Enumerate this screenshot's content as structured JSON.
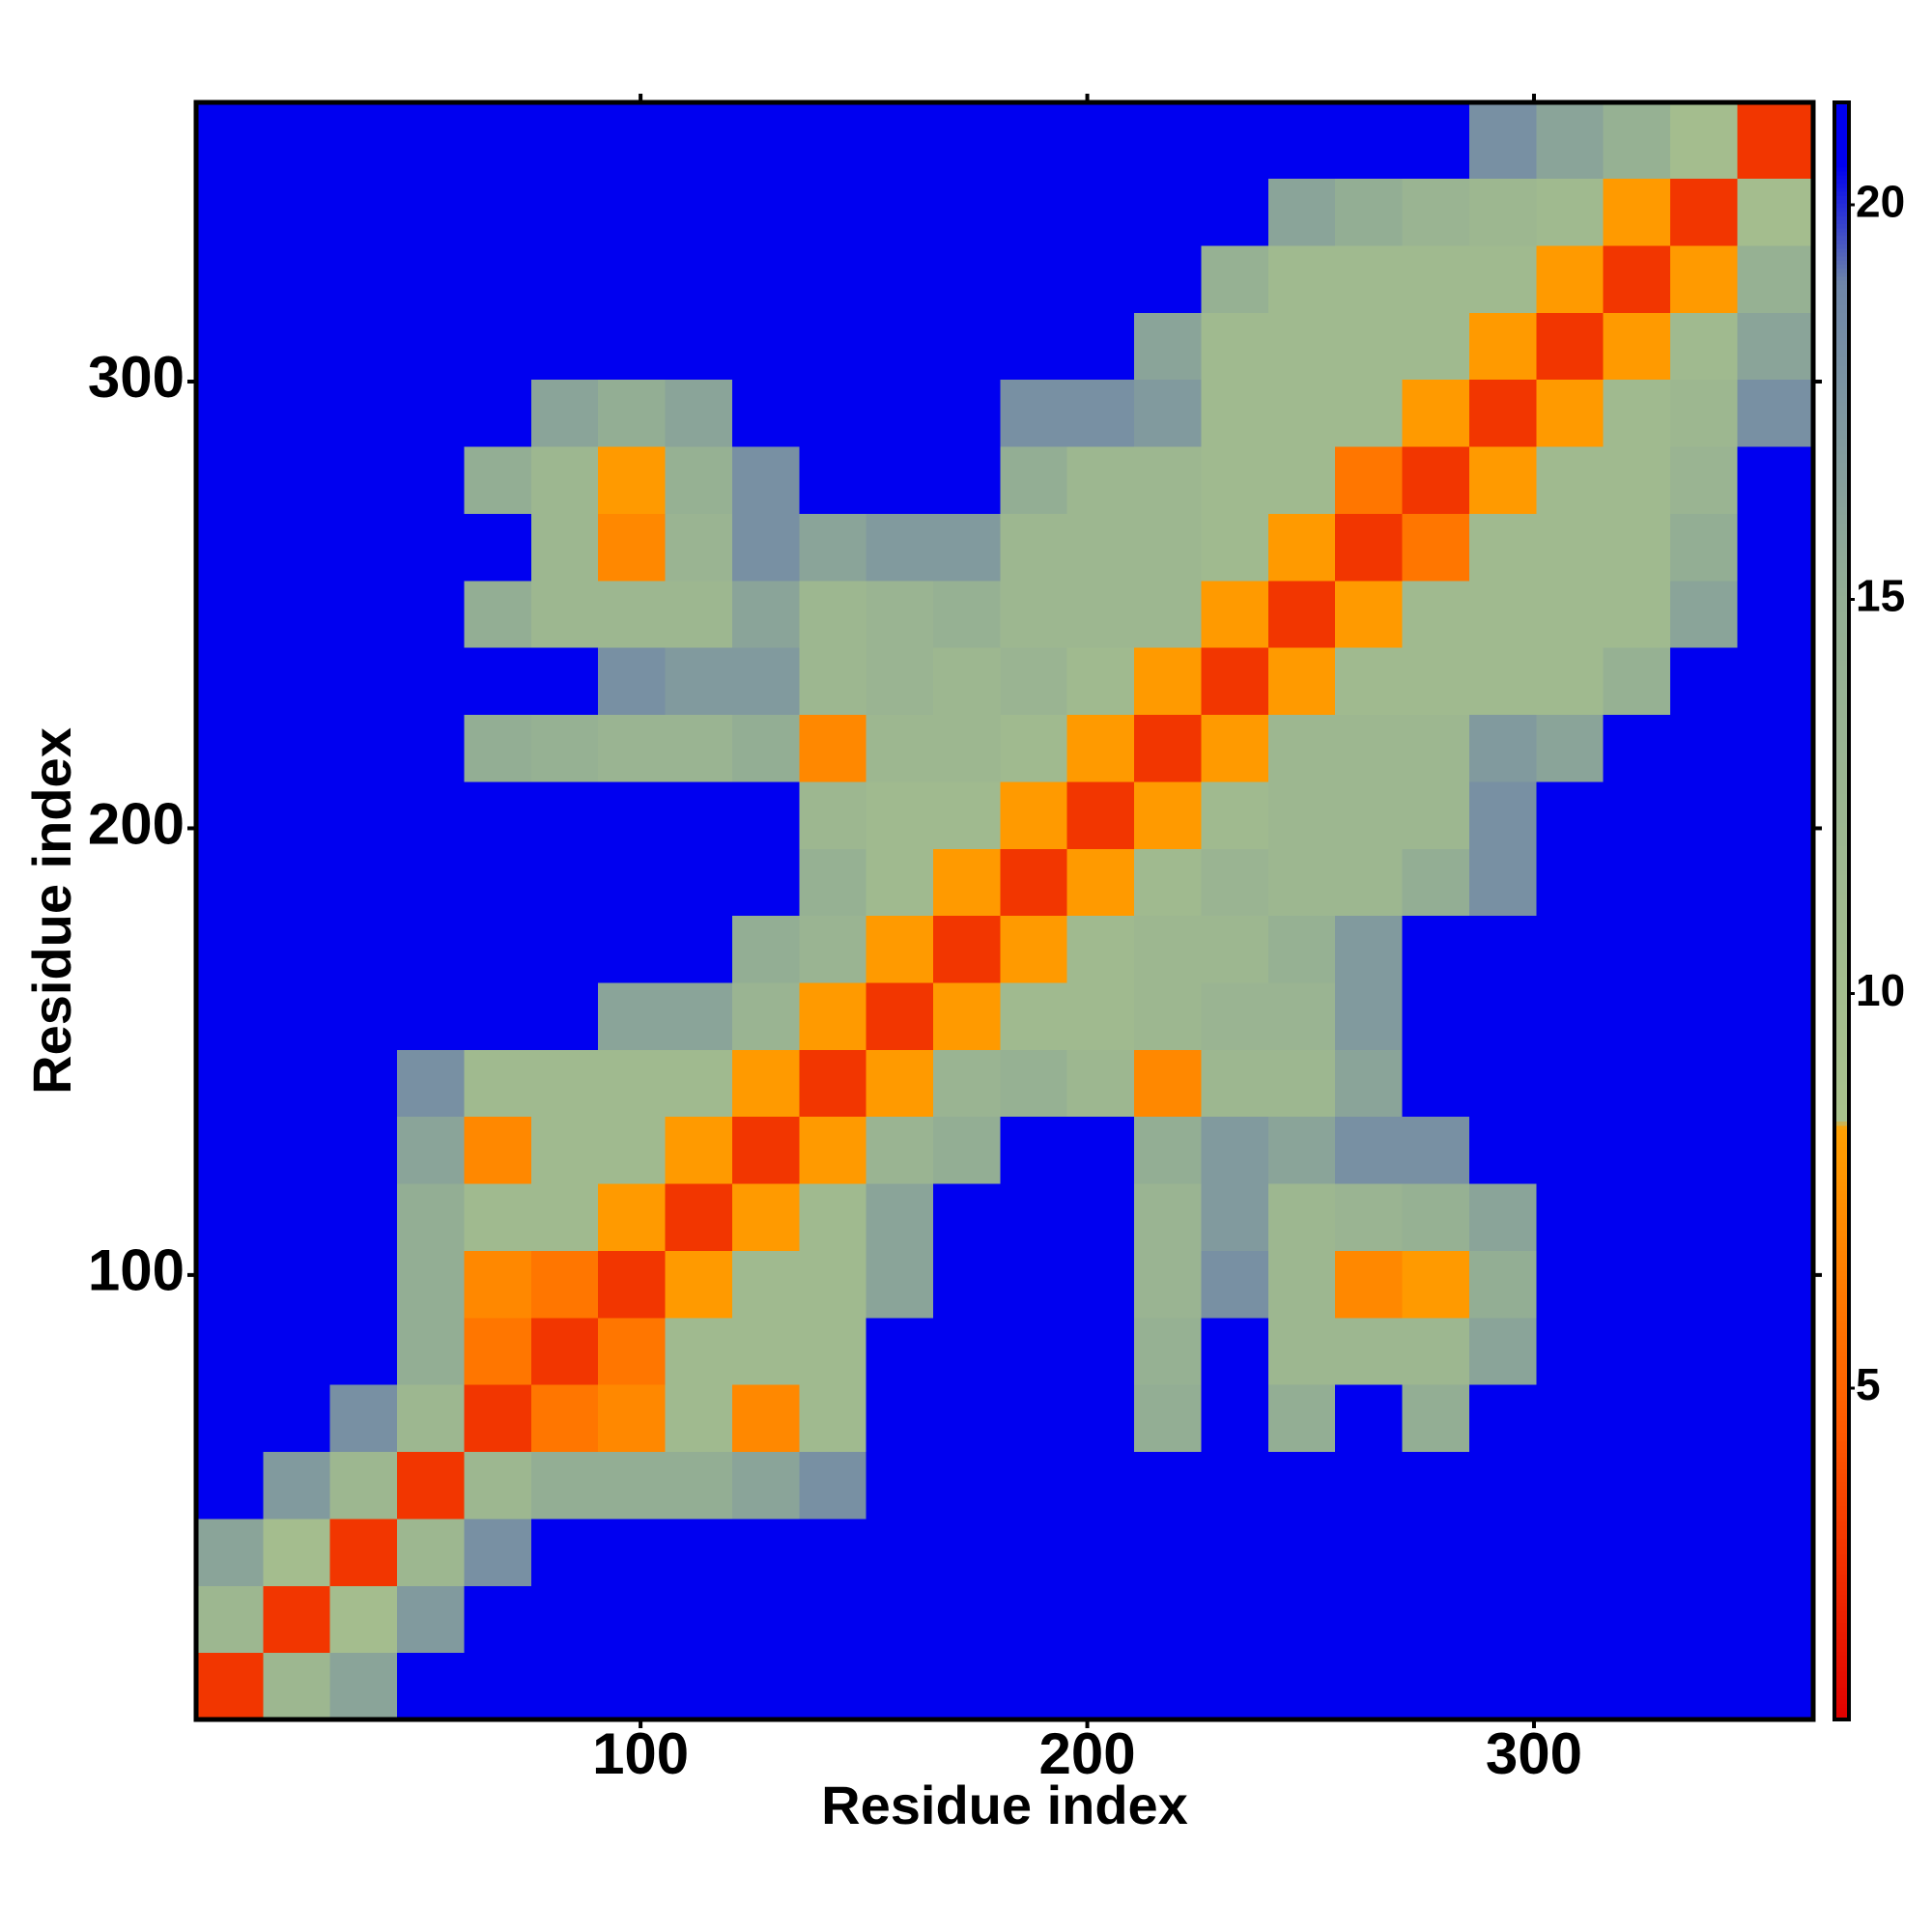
{
  "chart_data": {
    "type": "heatmap",
    "xlabel": "Residue index",
    "ylabel": "Residue index",
    "xlim": [
      0.5,
      362.5
    ],
    "ylim": [
      0.5,
      362.5
    ],
    "xticks": [
      100,
      200,
      300
    ],
    "yticks": [
      100,
      200,
      300
    ],
    "xbins": [
      0.5,
      15.5,
      30.5,
      45.5,
      60.5,
      75.5,
      90.5,
      105.5,
      120.5,
      135.5,
      150.5,
      165.5,
      180.5,
      195.5,
      210.5,
      225.5,
      240.5,
      255.5,
      270.5,
      285.5,
      300.5,
      315.5,
      330.5,
      345.5,
      362.5
    ],
    "ybins": [
      0.5,
      15.5,
      30.5,
      45.5,
      60.5,
      75.5,
      90.5,
      105.5,
      120.5,
      135.5,
      150.5,
      165.5,
      180.5,
      195.5,
      210.5,
      225.5,
      240.5,
      255.5,
      270.5,
      285.5,
      300.5,
      315.5,
      330.5,
      345.5,
      362.5
    ],
    "z": [
      [
        3,
        12,
        16,
        21,
        21,
        21,
        21,
        21,
        21,
        21,
        21,
        21,
        21,
        21,
        21,
        21,
        21,
        21,
        21,
        21,
        21,
        21,
        21,
        21
      ],
      [
        12,
        3,
        10,
        17,
        21,
        21,
        21,
        21,
        21,
        21,
        21,
        21,
        21,
        21,
        21,
        21,
        21,
        21,
        21,
        21,
        21,
        21,
        21,
        21
      ],
      [
        16,
        10,
        3,
        12,
        18,
        21,
        21,
        21,
        21,
        21,
        21,
        21,
        21,
        21,
        21,
        21,
        21,
        21,
        21,
        21,
        21,
        21,
        21,
        21
      ],
      [
        21,
        17,
        12,
        3,
        12,
        15,
        15,
        15,
        16,
        18,
        21,
        21,
        21,
        21,
        21,
        21,
        21,
        21,
        21,
        21,
        21,
        21,
        21,
        21
      ],
      [
        21,
        21,
        18,
        12,
        3,
        6,
        7,
        11,
        7,
        11,
        21,
        21,
        21,
        21,
        15,
        21,
        15,
        21,
        15,
        21,
        21,
        21,
        21,
        21
      ],
      [
        21,
        21,
        21,
        15,
        6,
        3,
        6,
        11,
        11,
        11,
        21,
        21,
        21,
        21,
        14,
        21,
        12,
        12,
        12,
        16,
        21,
        21,
        21,
        21
      ],
      [
        21,
        21,
        21,
        15,
        7,
        6,
        3,
        8,
        11,
        11,
        16,
        21,
        21,
        21,
        13,
        18,
        12,
        7,
        8,
        15,
        21,
        21,
        21,
        21
      ],
      [
        21,
        21,
        21,
        15,
        11,
        11,
        8,
        3,
        8,
        11,
        16,
        21,
        21,
        21,
        13,
        17,
        12,
        13,
        14,
        16,
        21,
        21,
        21,
        21
      ],
      [
        21,
        21,
        21,
        16,
        7,
        11,
        11,
        8,
        3,
        8,
        13,
        15,
        21,
        21,
        15,
        17,
        16,
        18,
        18,
        21,
        21,
        21,
        21,
        21
      ],
      [
        21,
        21,
        21,
        18,
        11,
        11,
        11,
        11,
        8,
        3,
        8,
        13,
        14,
        12,
        7,
        12,
        12,
        16,
        21,
        21,
        21,
        21,
        21,
        21
      ],
      [
        21,
        21,
        21,
        21,
        21,
        21,
        16,
        16,
        13,
        8,
        3,
        8,
        11,
        11,
        12,
        13,
        13,
        17,
        21,
        21,
        21,
        21,
        21,
        21
      ],
      [
        21,
        21,
        21,
        21,
        21,
        21,
        21,
        21,
        15,
        13,
        8,
        3,
        8,
        11,
        12,
        12,
        14,
        17,
        21,
        21,
        21,
        21,
        21,
        21
      ],
      [
        21,
        21,
        21,
        21,
        21,
        21,
        21,
        21,
        21,
        14,
        11,
        8,
        3,
        8,
        11,
        13,
        12,
        12,
        15,
        18,
        21,
        21,
        21,
        21
      ],
      [
        21,
        21,
        21,
        21,
        21,
        21,
        21,
        21,
        21,
        12,
        11,
        11,
        8,
        3,
        8,
        11,
        12,
        12,
        12,
        18,
        21,
        21,
        21,
        21
      ],
      [
        21,
        21,
        21,
        21,
        15,
        14,
        13,
        13,
        15,
        7,
        12,
        12,
        11,
        8,
        3,
        8,
        12,
        12,
        12,
        17,
        16,
        21,
        21,
        21
      ],
      [
        21,
        21,
        21,
        21,
        21,
        21,
        18,
        17,
        17,
        12,
        13,
        12,
        13,
        11,
        8,
        3,
        8,
        11,
        11,
        11,
        11,
        14,
        21,
        21
      ],
      [
        21,
        21,
        21,
        21,
        15,
        12,
        12,
        12,
        16,
        12,
        13,
        14,
        12,
        12,
        12,
        8,
        3,
        8,
        11,
        11,
        11,
        11,
        16,
        21
      ],
      [
        21,
        21,
        21,
        21,
        21,
        12,
        7,
        13,
        18,
        16,
        17,
        17,
        12,
        12,
        12,
        11,
        8,
        3,
        6,
        11,
        11,
        11,
        15,
        21
      ],
      [
        21,
        21,
        21,
        21,
        15,
        12,
        8,
        14,
        18,
        21,
        21,
        21,
        15,
        12,
        12,
        11,
        11,
        6,
        3,
        8,
        11,
        11,
        13,
        21
      ],
      [
        21,
        21,
        21,
        21,
        21,
        16,
        15,
        16,
        21,
        21,
        21,
        21,
        18,
        18,
        17,
        11,
        11,
        11,
        8,
        3,
        8,
        11,
        12,
        18
      ],
      [
        21,
        21,
        21,
        21,
        21,
        21,
        21,
        21,
        21,
        21,
        21,
        21,
        21,
        21,
        16,
        11,
        11,
        11,
        11,
        8,
        3,
        8,
        11,
        16
      ],
      [
        21,
        21,
        21,
        21,
        21,
        21,
        21,
        21,
        21,
        21,
        21,
        21,
        21,
        21,
        21,
        14,
        11,
        11,
        11,
        11,
        8,
        3,
        8,
        14
      ],
      [
        21,
        21,
        21,
        21,
        21,
        21,
        21,
        21,
        21,
        21,
        21,
        21,
        21,
        21,
        21,
        21,
        16,
        15,
        13,
        12,
        11,
        8,
        3,
        10
      ],
      [
        21,
        21,
        21,
        21,
        21,
        21,
        21,
        21,
        21,
        21,
        21,
        21,
        21,
        21,
        21,
        21,
        21,
        21,
        21,
        18,
        16,
        14,
        10,
        3
      ]
    ],
    "zlim": [
      0.8,
      21.3
    ],
    "zticks": [
      5,
      10,
      15,
      20
    ],
    "colorscale": [
      [
        0.8,
        "#e00000"
      ],
      [
        4.5,
        "#ff5a00"
      ],
      [
        8.3,
        "#ffa000"
      ],
      [
        8.4,
        "#a9c28c"
      ],
      [
        15,
        "#93ae94"
      ],
      [
        19,
        "#6f86a8"
      ],
      [
        20.5,
        "#0000f0"
      ]
    ]
  }
}
